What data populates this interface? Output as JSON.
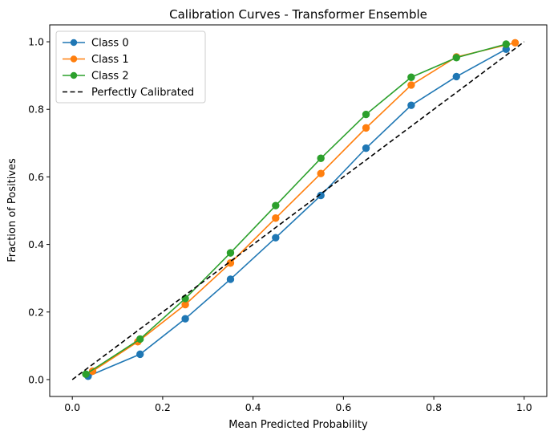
{
  "chart_data": {
    "type": "line",
    "title": "Calibration Curves - Transformer Ensemble",
    "xlabel": "Mean Predicted Probability",
    "ylabel": "Fraction of Positives",
    "xlim": [
      -0.05,
      1.05
    ],
    "ylim": [
      -0.05,
      1.05
    ],
    "xticks": [
      "0.0",
      "0.2",
      "0.4",
      "0.6",
      "0.8",
      "1.0"
    ],
    "yticks": [
      "0.0",
      "0.2",
      "0.4",
      "0.6",
      "0.8",
      "1.0"
    ],
    "grid": false,
    "legend_position": "top-left",
    "series": [
      {
        "name": "Class 0",
        "color": "#1f77b4",
        "marker": "circle",
        "x": [
          0.035,
          0.15,
          0.25,
          0.35,
          0.45,
          0.55,
          0.65,
          0.75,
          0.85,
          0.96
        ],
        "y": [
          0.01,
          0.075,
          0.18,
          0.297,
          0.42,
          0.545,
          0.685,
          0.812,
          0.897,
          0.978
        ]
      },
      {
        "name": "Class 1",
        "color": "#ff7f0e",
        "marker": "circle",
        "x": [
          0.045,
          0.145,
          0.25,
          0.35,
          0.45,
          0.55,
          0.65,
          0.75,
          0.85,
          0.98
        ],
        "y": [
          0.025,
          0.112,
          0.222,
          0.345,
          0.478,
          0.61,
          0.745,
          0.872,
          0.955,
          0.997
        ]
      },
      {
        "name": "Class 2",
        "color": "#2ca02c",
        "marker": "circle",
        "x": [
          0.03,
          0.15,
          0.25,
          0.35,
          0.45,
          0.55,
          0.65,
          0.75,
          0.85,
          0.96
        ],
        "y": [
          0.016,
          0.12,
          0.24,
          0.375,
          0.515,
          0.655,
          0.785,
          0.895,
          0.953,
          0.993
        ]
      }
    ],
    "reference_line": {
      "name": "Perfectly Calibrated",
      "color": "#000000",
      "style": "dashed",
      "x": [
        0,
        1
      ],
      "y": [
        0,
        1
      ]
    }
  }
}
